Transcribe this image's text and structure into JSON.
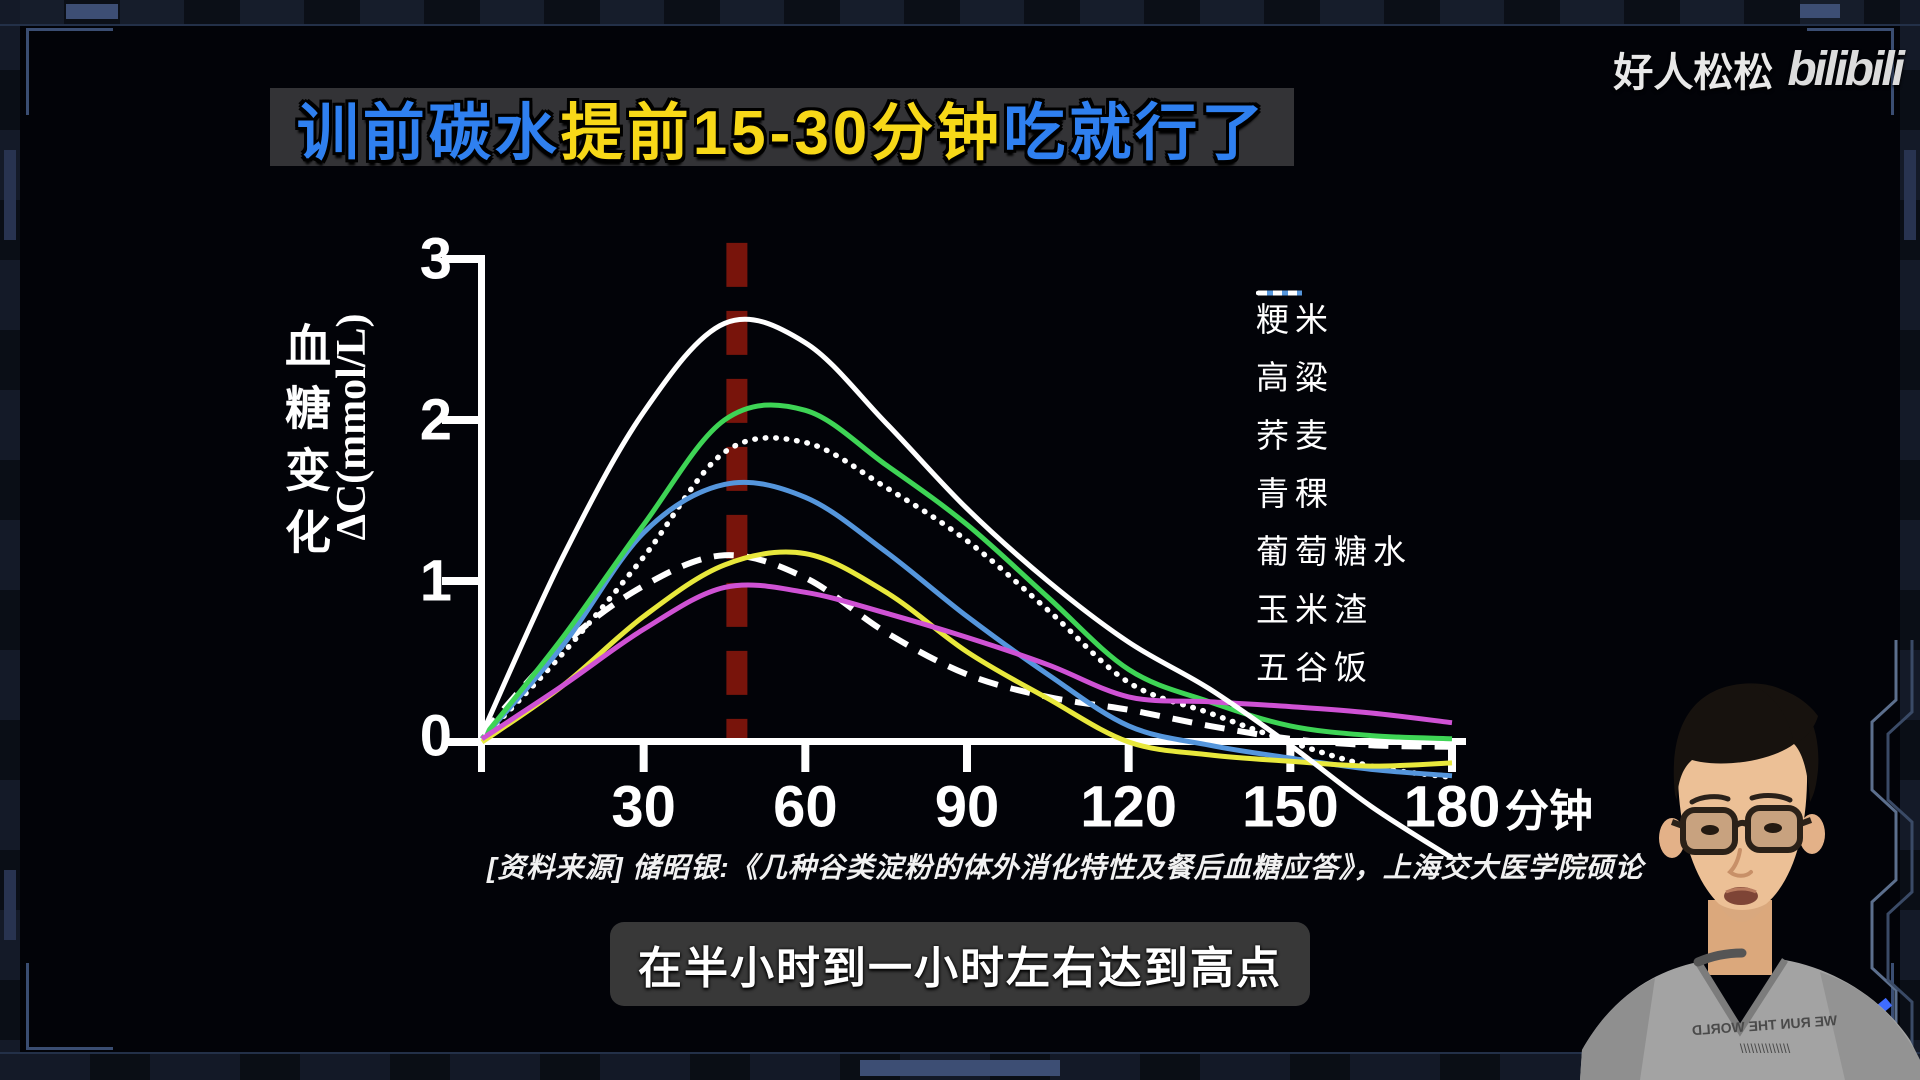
{
  "watermark": {
    "channel": "好人松松",
    "platform_logo": "bilibili"
  },
  "title": {
    "segments": [
      {
        "text": "训前碳水",
        "color": "#2f80f0"
      },
      {
        "text": "提前15-30分钟",
        "color": "#f7d818"
      },
      {
        "text": "吃就行了",
        "color": "#2f80f0"
      }
    ]
  },
  "subtitle": {
    "text": "在半小时到一小时左右达到高点"
  },
  "source_note": "[资料来源] 储昭银:《几种谷类淀粉的体外消化特性及餐后血糖应答》，上海交大医学院硕论",
  "webcam": {
    "shirt_text": "WE RUN THE WORLD"
  },
  "chart_data": {
    "type": "line",
    "xlabel": "分钟",
    "ylabel_lines": "血糖变化",
    "ylabel_unit": "ΔC(mmol/L)",
    "x": [
      0,
      15,
      30,
      45,
      60,
      75,
      90,
      105,
      120,
      135,
      150,
      165,
      180
    ],
    "x_ticks": [
      30,
      60,
      90,
      120,
      150,
      180
    ],
    "y_ticks": [
      0,
      1,
      2,
      3
    ],
    "xlim": [
      0,
      180
    ],
    "ylim": [
      -0.95,
      3.1
    ],
    "grid": false,
    "legend_position": "right",
    "axis_color": "#ffffff",
    "marker_line": {
      "x": 47.3,
      "y_from": 0,
      "y_to": 3.1,
      "color": "#7f150c",
      "style": "dashed-vertical"
    },
    "series": [
      {
        "name": "粳米",
        "color": "#3ed455",
        "style": "solid",
        "values": [
          0.02,
          0.65,
          1.35,
          2.0,
          2.06,
          1.72,
          1.35,
          0.9,
          0.45,
          0.25,
          0.1,
          0.04,
          0.02
        ]
      },
      {
        "name": "高粱",
        "color": "#ffffff",
        "style": "dotted",
        "values": [
          0.02,
          0.55,
          1.15,
          1.8,
          1.86,
          1.58,
          1.25,
          0.82,
          0.37,
          0.18,
          0.0,
          -0.15,
          -0.22
        ]
      },
      {
        "name": "荞麦",
        "color": "#e8e83c",
        "style": "solid",
        "values": [
          0.0,
          0.35,
          0.78,
          1.1,
          1.17,
          0.93,
          0.56,
          0.27,
          0.0,
          -0.08,
          -0.12,
          -0.15,
          -0.13
        ]
      },
      {
        "name": "青稞",
        "color": "#cf52d4",
        "style": "solid",
        "values": [
          0.02,
          0.35,
          0.7,
          0.96,
          0.93,
          0.8,
          0.65,
          0.48,
          0.28,
          0.25,
          0.22,
          0.18,
          0.12
        ]
      },
      {
        "name": "葡萄糖水",
        "color": "#ffffff",
        "style": "solid",
        "values": [
          0.05,
          1.15,
          2.05,
          2.6,
          2.48,
          1.98,
          1.45,
          1.0,
          0.62,
          0.33,
          -0.02,
          -0.4,
          -0.72
        ]
      },
      {
        "name": "玉米渣",
        "color": "#5596dc",
        "style": "solid",
        "values": [
          0.02,
          0.6,
          1.3,
          1.6,
          1.52,
          1.18,
          0.78,
          0.42,
          0.1,
          -0.02,
          -0.1,
          -0.17,
          -0.21
        ]
      },
      {
        "name": "五谷饭",
        "color": "#ffffff",
        "style": "dashed",
        "values": [
          0.05,
          0.6,
          0.97,
          1.16,
          1.02,
          0.68,
          0.42,
          0.28,
          0.2,
          0.1,
          0.02,
          -0.02,
          -0.03
        ]
      }
    ]
  }
}
